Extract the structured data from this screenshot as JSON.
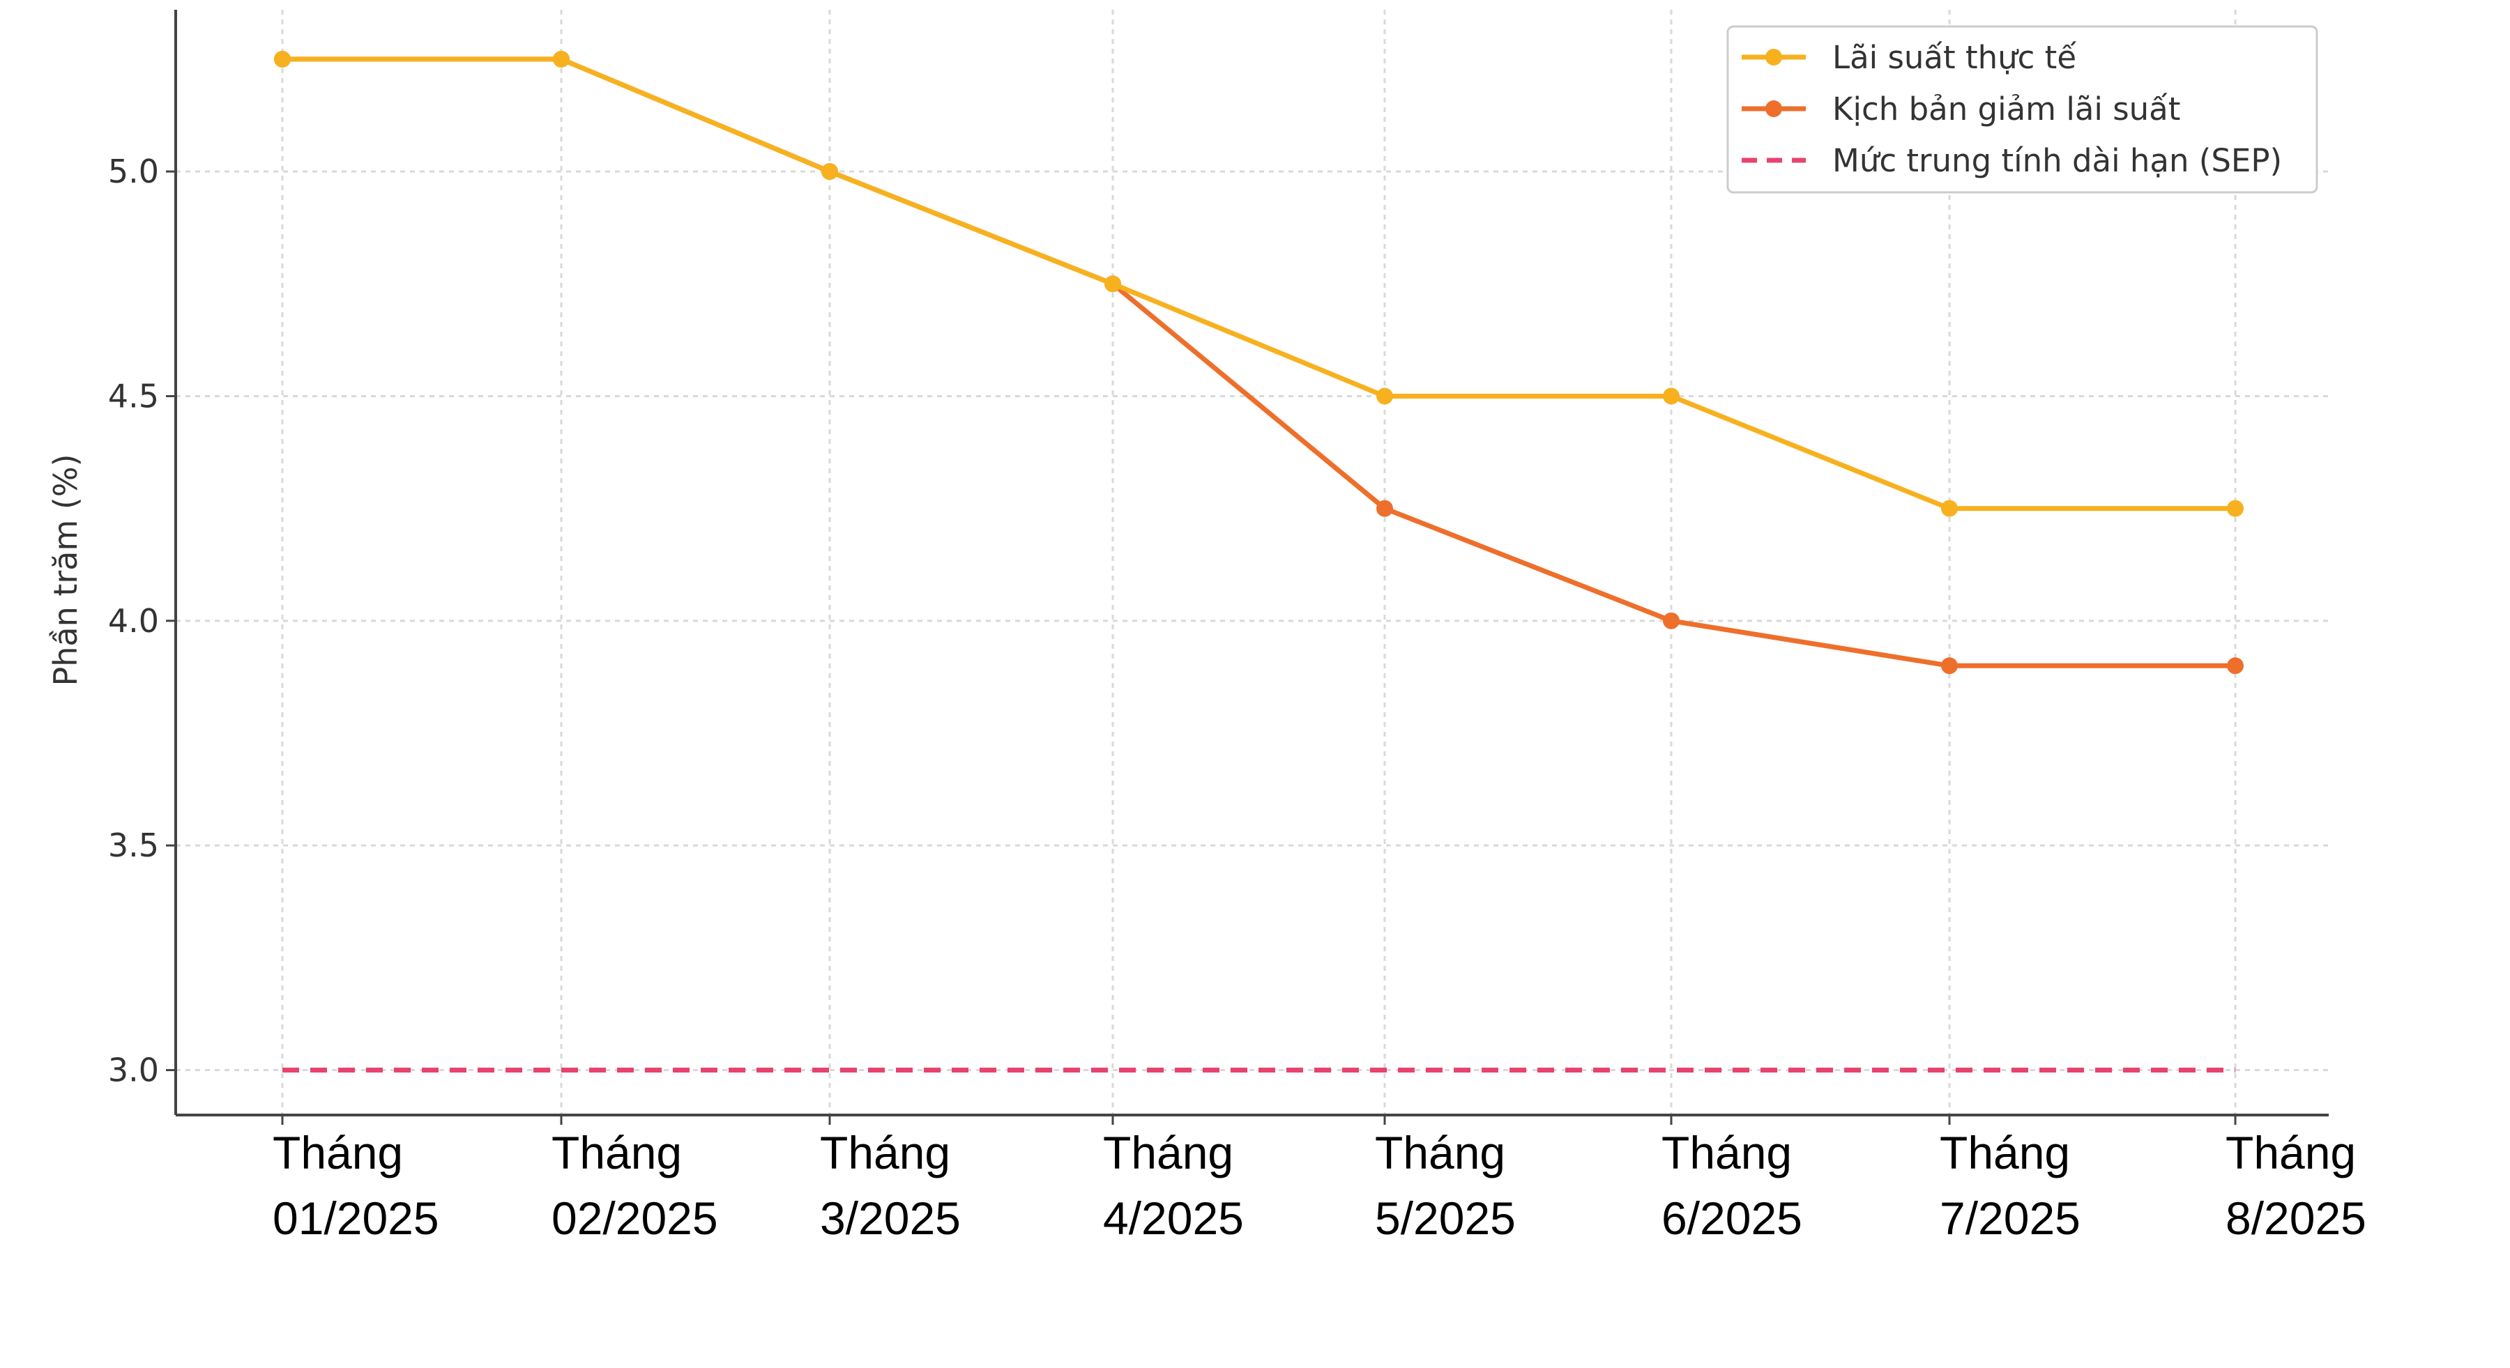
{
  "chart_data": {
    "type": "line",
    "title": "",
    "xlabel": "",
    "ylabel": "Phần trăm (%)",
    "categories": [
      [
        "Tháng",
        "01/2025"
      ],
      [
        "Tháng",
        "02/2025"
      ],
      [
        "Tháng",
        "3/2025"
      ],
      [
        "Tháng",
        "4/2025"
      ],
      [
        "Tháng",
        "5/2025"
      ],
      [
        "Tháng",
        "6/2025"
      ],
      [
        "Tháng",
        "7/2025"
      ],
      [
        "Tháng",
        "8/2025"
      ]
    ],
    "ylim": [
      2.9,
      5.36
    ],
    "yticks": [
      "3.0",
      "3.5",
      "4.0",
      "4.5",
      "5.0"
    ],
    "grid": true,
    "legend_position": "top-right",
    "series": [
      {
        "name": "Lãi suất thực tế",
        "color": "#f7b11f",
        "marker": "circle",
        "values": [
          5.25,
          5.25,
          5.0,
          4.75,
          4.5,
          4.5,
          4.25,
          4.25
        ]
      },
      {
        "name": "Kịch bản giảm lãi suất",
        "color": "#ee6f2b",
        "marker": "circle",
        "values": [
          5.25,
          5.25,
          5.0,
          4.75,
          4.25,
          4.0,
          3.9,
          3.9
        ]
      },
      {
        "name": "Mức trung tính dài hạn (SEP)",
        "color": "#e8436f",
        "style": "dashed",
        "values": [
          3.0,
          3.0,
          3.0,
          3.0,
          3.0,
          3.0,
          3.0,
          3.0
        ]
      }
    ]
  }
}
